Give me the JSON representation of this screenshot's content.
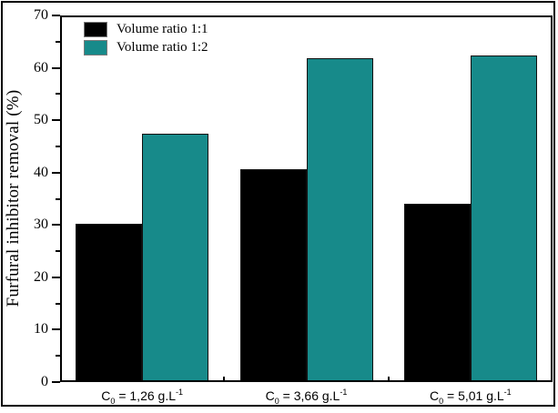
{
  "window": {
    "background": "#ffffff",
    "border_color": "#000000"
  },
  "chart_data": {
    "type": "bar",
    "title": "",
    "xlabel": "",
    "ylabel": "Furfural inhibitor removal (%)",
    "ylim": [
      0,
      70
    ],
    "y_major_ticks": [
      0,
      10,
      20,
      30,
      40,
      50,
      60,
      70
    ],
    "y_minor_ticks": [
      5,
      15,
      25,
      35,
      45,
      55,
      65
    ],
    "grid": false,
    "legend": {
      "position": "top-left-inside",
      "entries": [
        "Volume ratio 1:1",
        "Volume ratio 1:2"
      ]
    },
    "categories": [
      "C₀ = 1,26 g.L⁻¹",
      "C₀ = 3,66 g.L⁻¹",
      "C₀ = 5,01 g.L⁻¹"
    ],
    "categories_rich": [
      {
        "base": "C",
        "sub": "0",
        "mid": " = 1,26 g.L",
        "sup": "-1"
      },
      {
        "base": "C",
        "sub": "0",
        "mid": " = 3,66 g.L",
        "sup": "-1"
      },
      {
        "base": "C",
        "sub": "0",
        "mid": " = 5,01 g.L",
        "sup": "-1"
      }
    ],
    "series": [
      {
        "name": "Volume ratio 1:1",
        "color": "#000000",
        "values": [
          30.3,
          40.7,
          34.0
        ]
      },
      {
        "name": "Volume ratio 1:2",
        "color": "#178a8a",
        "values": [
          47.5,
          61.8,
          62.4
        ]
      }
    ]
  }
}
